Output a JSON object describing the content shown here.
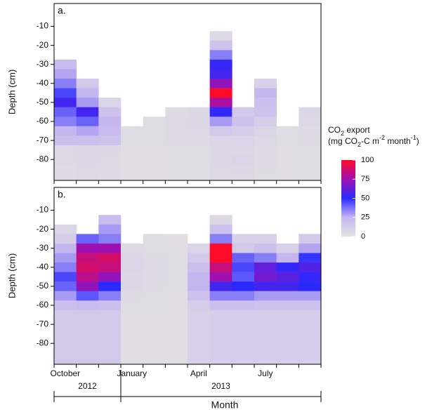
{
  "chart_data": {
    "type": "heatmap",
    "x_label": "Month",
    "categories": [
      "October",
      null,
      null,
      "January",
      null,
      null,
      "April",
      null,
      null,
      "July",
      null,
      null
    ],
    "years": [
      {
        "label": "2012",
        "months": 3
      },
      {
        "label": "2013",
        "months": 9
      }
    ],
    "depths": [
      -15,
      -20,
      -25,
      -30,
      -35,
      -40,
      -45,
      -50,
      -55,
      -60,
      -65,
      -70,
      -75,
      -80,
      -85,
      -90
    ],
    "ylim": [
      -91,
      2
    ],
    "yticks": [
      -10,
      -20,
      -30,
      -40,
      -50,
      -60,
      -70,
      -80
    ],
    "colorscale": [
      {
        "value": 0,
        "color": "#e2e2e2"
      },
      {
        "value": 25,
        "color": "#c6b6f0"
      },
      {
        "value": 50,
        "color": "#2a2aff"
      },
      {
        "value": 75,
        "color": "#a010b0"
      },
      {
        "value": 100,
        "color": "#ff0a28"
      }
    ],
    "colorbar_ticks": [
      0,
      25,
      50,
      75,
      100
    ],
    "colorbar_title": [
      [
        {
          "text": "CO"
        },
        {
          "text": "2",
          "shift": "sub"
        },
        {
          "text": " export"
        }
      ],
      [
        {
          "text": "(mg CO"
        },
        {
          "text": "2",
          "shift": "sub"
        },
        {
          "text": "-C m"
        },
        {
          "text": "-2",
          "shift": "super"
        },
        {
          "text": " month"
        },
        {
          "text": "-1",
          "shift": "super"
        },
        {
          "text": ")"
        }
      ]
    ],
    "panels": [
      {
        "label": "a.",
        "y_label": "Depth (cm)",
        "cells": [
          [
            null,
            null,
            null,
            22,
            28,
            35,
            45,
            55,
            40,
            35,
            25,
            20,
            5,
            5,
            4,
            4
          ],
          [
            null,
            null,
            null,
            null,
            null,
            15,
            25,
            30,
            55,
            40,
            28,
            20,
            6,
            6,
            5,
            5
          ],
          [
            null,
            null,
            null,
            null,
            null,
            null,
            null,
            8,
            18,
            25,
            22,
            18,
            6,
            5,
            5,
            4
          ],
          [
            null,
            null,
            null,
            null,
            null,
            null,
            null,
            null,
            null,
            null,
            3,
            3,
            2,
            2,
            2,
            2
          ],
          [
            null,
            null,
            null,
            null,
            null,
            null,
            null,
            null,
            null,
            3,
            3,
            3,
            2,
            2,
            2,
            2
          ],
          [
            null,
            null,
            null,
            null,
            null,
            null,
            null,
            null,
            4,
            5,
            5,
            4,
            3,
            3,
            3,
            3
          ],
          [
            null,
            null,
            null,
            null,
            null,
            null,
            null,
            null,
            5,
            6,
            5,
            4,
            3,
            3,
            3,
            3
          ],
          [
            5,
            18,
            35,
            52,
            55,
            72,
            100,
            78,
            52,
            30,
            15,
            8,
            6,
            6,
            5,
            5
          ],
          [
            null,
            null,
            null,
            null,
            null,
            null,
            null,
            null,
            15,
            18,
            12,
            8,
            6,
            8,
            6,
            5
          ],
          [
            null,
            null,
            null,
            null,
            null,
            10,
            25,
            20,
            18,
            12,
            8,
            5,
            4,
            4,
            4,
            3
          ],
          [
            null,
            null,
            null,
            null,
            null,
            null,
            null,
            null,
            null,
            null,
            3,
            3,
            2,
            2,
            2,
            2
          ],
          [
            null,
            null,
            null,
            null,
            null,
            null,
            null,
            null,
            6,
            5,
            4,
            4,
            3,
            3,
            3,
            3
          ]
        ]
      },
      {
        "label": "b.",
        "y_label": "Depth (cm)",
        "cells": [
          [
            null,
            8,
            12,
            25,
            30,
            35,
            45,
            40,
            30,
            20,
            14,
            14,
            14,
            14,
            14,
            14
          ],
          [
            null,
            null,
            40,
            75,
            85,
            88,
            82,
            72,
            42,
            22,
            14,
            14,
            14,
            14,
            14,
            14
          ],
          [
            22,
            30,
            35,
            75,
            88,
            85,
            72,
            50,
            35,
            20,
            14,
            14,
            14,
            14,
            14,
            14
          ],
          [
            null,
            null,
            null,
            4,
            8,
            8,
            6,
            6,
            4,
            3,
            2,
            2,
            2,
            2,
            2,
            2
          ],
          [
            null,
            null,
            3,
            3,
            4,
            4,
            4,
            4,
            3,
            3,
            2,
            2,
            2,
            2,
            2,
            2
          ],
          [
            null,
            null,
            2,
            2,
            3,
            3,
            3,
            3,
            2,
            2,
            2,
            2,
            2,
            2,
            2,
            2
          ],
          [
            null,
            null,
            null,
            8,
            15,
            20,
            25,
            25,
            18,
            12,
            10,
            10,
            10,
            10,
            10,
            10
          ],
          [
            5,
            18,
            35,
            100,
            100,
            85,
            75,
            55,
            35,
            20,
            12,
            12,
            12,
            12,
            12,
            12
          ],
          [
            null,
            null,
            10,
            15,
            40,
            45,
            42,
            50,
            35,
            20,
            12,
            12,
            12,
            12,
            12,
            12
          ],
          [
            null,
            null,
            10,
            20,
            35,
            62,
            65,
            55,
            30,
            18,
            12,
            12,
            12,
            12,
            12,
            12
          ],
          [
            null,
            null,
            null,
            10,
            25,
            52,
            60,
            55,
            30,
            18,
            12,
            12,
            12,
            12,
            12,
            12
          ],
          [
            null,
            null,
            15,
            28,
            48,
            58,
            52,
            50,
            30,
            18,
            12,
            12,
            12,
            12,
            12,
            12
          ]
        ]
      }
    ]
  }
}
